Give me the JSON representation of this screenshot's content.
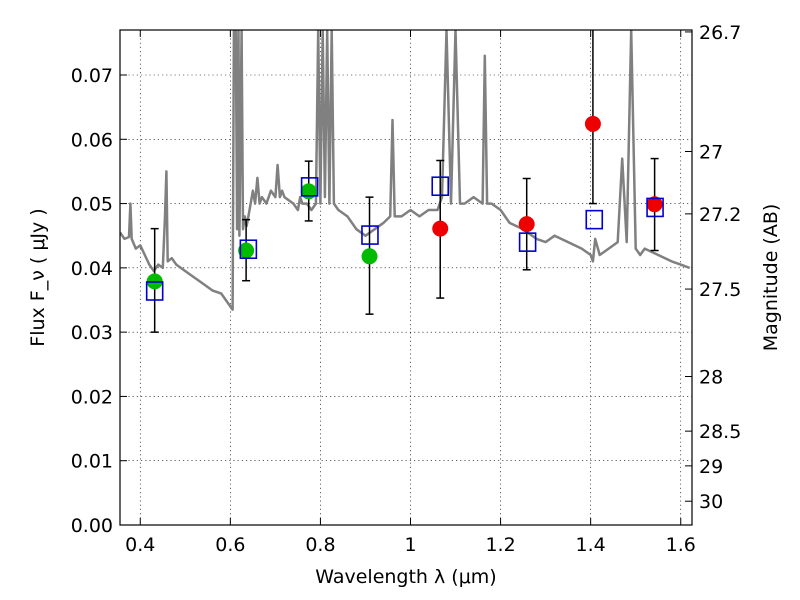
{
  "chart_data": {
    "type": "scatter",
    "xlabel": "Wavelength  λ (μm)",
    "ylabel": "Flux  F_ν  ( μJy )",
    "ylabel_right": "Magnitude (AB)",
    "xlim": [
      0.355,
      1.625
    ],
    "ylim": [
      0.0,
      0.077
    ],
    "grid": true,
    "x_ticks": [
      0.4,
      0.6,
      0.8,
      1.0,
      1.2,
      1.4,
      1.6
    ],
    "x_tick_labels": [
      "0.4",
      "0.6",
      "0.8",
      "1",
      "1.2",
      "1.4",
      "1.6"
    ],
    "y_ticks": [
      0.0,
      0.01,
      0.02,
      0.03,
      0.04,
      0.05,
      0.06,
      0.07
    ],
    "y_tick_labels": [
      "0.00",
      "0.01",
      "0.02",
      "0.03",
      "0.04",
      "0.05",
      "0.06",
      "0.07"
    ],
    "right_ticks": [
      {
        "label": "26.7",
        "flux": 0.0767
      },
      {
        "label": "27",
        "flux": 0.0581
      },
      {
        "label": "27.2",
        "flux": 0.0484
      },
      {
        "label": "27.5",
        "flux": 0.0367
      },
      {
        "label": "28",
        "flux": 0.0231
      },
      {
        "label": "28.5",
        "flux": 0.0146
      },
      {
        "label": "29",
        "flux": 0.0092
      },
      {
        "label": "30",
        "flux": 0.0037
      }
    ],
    "colors": {
      "model": "#808080",
      "green_points": "#00bb00",
      "red_points": "#ee0000",
      "model_boxes": "#0000cc",
      "errorbars": "#000000"
    },
    "model_spectrum": {
      "x": [
        0.355,
        0.365,
        0.375,
        0.378,
        0.381,
        0.39,
        0.4,
        0.41,
        0.42,
        0.43,
        0.44,
        0.45,
        0.455,
        0.458,
        0.461,
        0.47,
        0.48,
        0.5,
        0.52,
        0.54,
        0.56,
        0.58,
        0.59,
        0.6,
        0.605,
        0.608,
        0.612,
        0.615,
        0.618,
        0.62,
        0.625,
        0.628,
        0.632,
        0.636,
        0.64,
        0.65,
        0.655,
        0.66,
        0.665,
        0.67,
        0.68,
        0.69,
        0.7,
        0.705,
        0.71,
        0.715,
        0.72,
        0.74,
        0.75,
        0.755,
        0.76,
        0.77,
        0.78,
        0.79,
        0.795,
        0.8,
        0.805,
        0.81,
        0.815,
        0.82,
        0.825,
        0.83,
        0.84,
        0.86,
        0.88,
        0.9,
        0.92,
        0.94,
        0.955,
        0.96,
        0.965,
        0.98,
        1.0,
        1.02,
        1.04,
        1.06,
        1.07,
        1.08,
        1.09,
        1.1,
        1.11,
        1.12,
        1.14,
        1.16,
        1.165,
        1.17,
        1.18,
        1.2,
        1.22,
        1.25,
        1.28,
        1.3,
        1.32,
        1.35,
        1.38,
        1.4,
        1.405,
        1.41,
        1.42,
        1.44,
        1.46,
        1.47,
        1.48,
        1.49,
        1.5,
        1.51,
        1.52,
        1.55,
        1.58,
        1.6,
        1.62
      ],
      "y": [
        0.0455,
        0.0445,
        0.0448,
        0.05,
        0.0445,
        0.043,
        0.0435,
        0.042,
        0.0405,
        0.0395,
        0.0405,
        0.04,
        0.048,
        0.055,
        0.041,
        0.0415,
        0.0405,
        0.0395,
        0.0385,
        0.0375,
        0.0365,
        0.036,
        0.035,
        0.034,
        0.0335,
        0.077,
        0.077,
        0.046,
        0.077,
        0.045,
        0.077,
        0.046,
        0.048,
        0.0465,
        0.048,
        0.052,
        0.05,
        0.054,
        0.05,
        0.051,
        0.05,
        0.052,
        0.051,
        0.056,
        0.051,
        0.052,
        0.051,
        0.05,
        0.049,
        0.051,
        0.05,
        0.05,
        0.049,
        0.05,
        0.077,
        0.05,
        0.077,
        0.051,
        0.077,
        0.05,
        0.077,
        0.05,
        0.049,
        0.048,
        0.046,
        0.045,
        0.046,
        0.047,
        0.048,
        0.063,
        0.048,
        0.048,
        0.049,
        0.048,
        0.049,
        0.049,
        0.051,
        0.077,
        0.05,
        0.077,
        0.05,
        0.05,
        0.051,
        0.05,
        0.073,
        0.05,
        0.05,
        0.049,
        0.047,
        0.046,
        0.0445,
        0.044,
        0.045,
        0.044,
        0.043,
        0.042,
        0.041,
        0.0445,
        0.042,
        0.043,
        0.044,
        0.057,
        0.044,
        0.077,
        0.043,
        0.042,
        0.043,
        0.042,
        0.041,
        0.0405,
        0.04
      ]
    },
    "model_boxes": [
      {
        "x": 0.432,
        "y": 0.0364
      },
      {
        "x": 0.64,
        "y": 0.0429
      },
      {
        "x": 0.776,
        "y": 0.0526
      },
      {
        "x": 0.91,
        "y": 0.0451
      },
      {
        "x": 1.066,
        "y": 0.0527
      },
      {
        "x": 1.26,
        "y": 0.044
      },
      {
        "x": 1.408,
        "y": 0.0475
      },
      {
        "x": 1.543,
        "y": 0.0494
      }
    ],
    "observed_points": [
      {
        "x": 0.432,
        "y": 0.0379,
        "err_low": 0.03,
        "err_high": 0.0461,
        "color": "green"
      },
      {
        "x": 0.635,
        "y": 0.0427,
        "err_low": 0.038,
        "err_high": 0.0475,
        "color": "green"
      },
      {
        "x": 0.774,
        "y": 0.0519,
        "err_low": 0.0473,
        "err_high": 0.0566,
        "color": "green"
      },
      {
        "x": 0.909,
        "y": 0.0418,
        "err_low": 0.0328,
        "err_high": 0.051,
        "color": "green"
      },
      {
        "x": 1.066,
        "y": 0.0461,
        "err_low": 0.0353,
        "err_high": 0.0567,
        "color": "red"
      },
      {
        "x": 1.258,
        "y": 0.0468,
        "err_low": 0.0397,
        "err_high": 0.0539,
        "color": "red"
      },
      {
        "x": 1.405,
        "y": 0.0624,
        "err_low": 0.05,
        "err_high": 0.077,
        "color": "red"
      },
      {
        "x": 1.542,
        "y": 0.0499,
        "err_low": 0.0427,
        "err_high": 0.057,
        "color": "red"
      }
    ]
  }
}
